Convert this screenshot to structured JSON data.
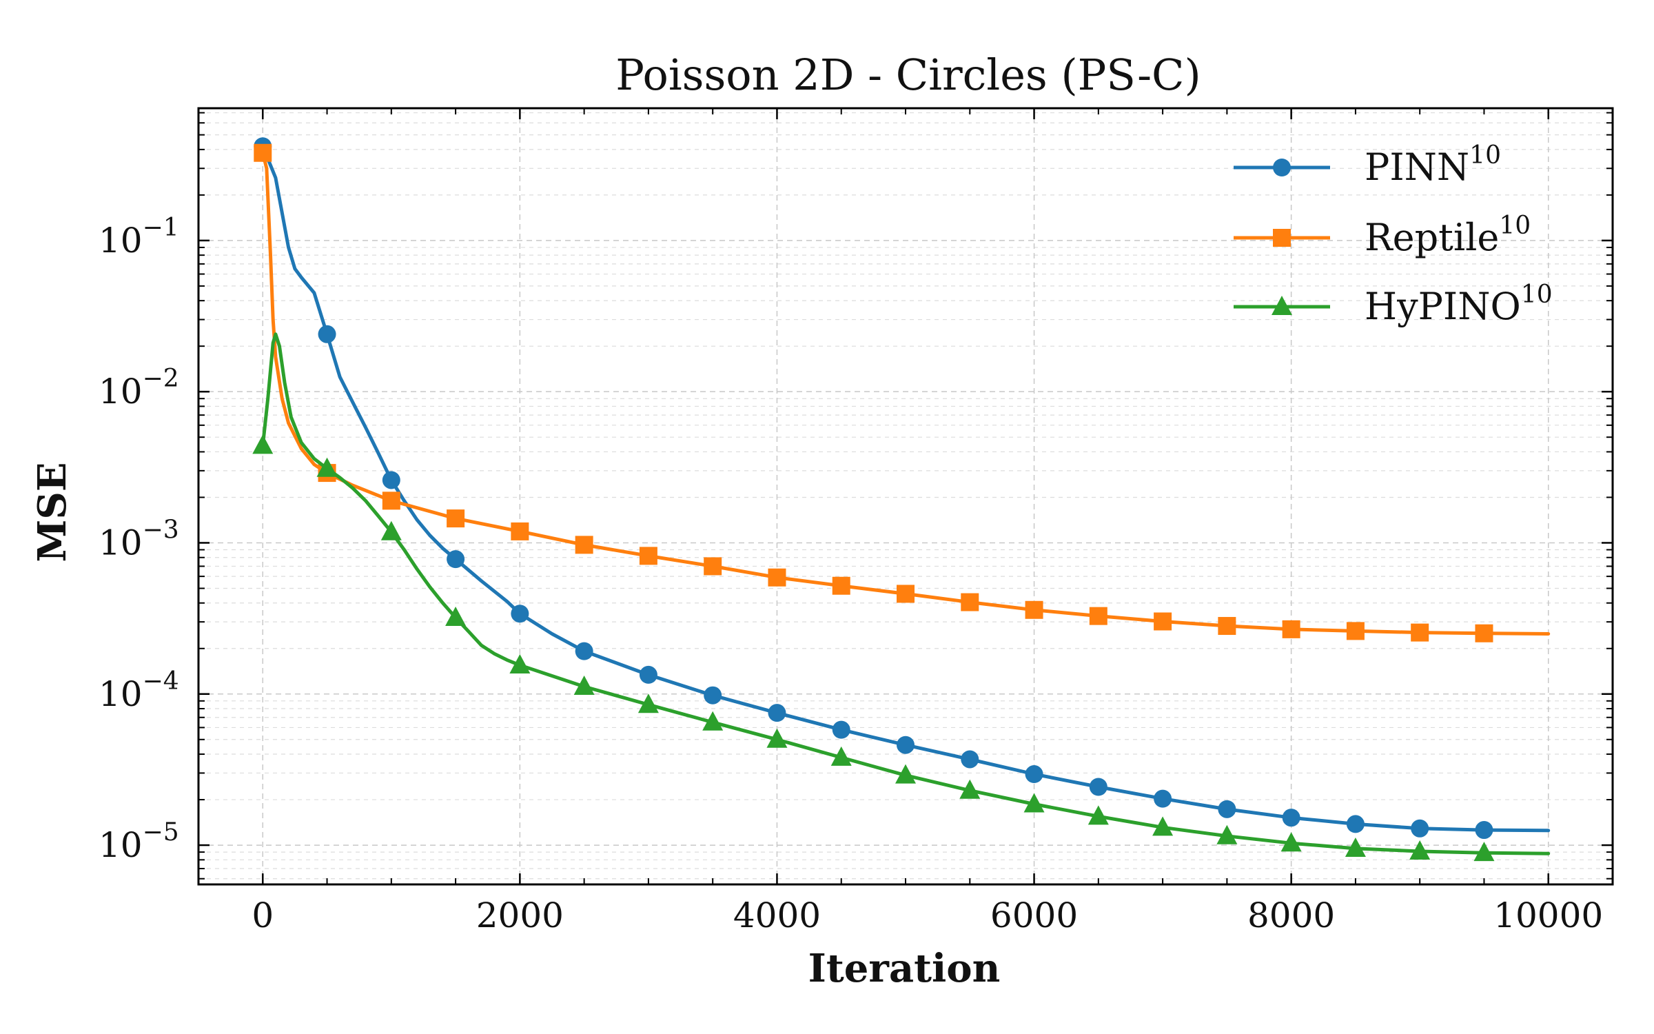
{
  "chart_data": {
    "type": "line",
    "title": "Poisson 2D - Circles (PS-C)",
    "xlabel": "Iteration",
    "ylabel": "MSE",
    "yscale": "log",
    "xlim": [
      -500,
      10500
    ],
    "ylim": [
      5.5e-06,
      0.75
    ],
    "grid": true,
    "legend_position": "top-right",
    "x_ticks": [
      0,
      2000,
      4000,
      6000,
      8000,
      10000
    ],
    "x_tick_labels": [
      "0",
      "2000",
      "4000",
      "6000",
      "8000",
      "10000"
    ],
    "y_ticks": [
      {
        "value": 0.1,
        "base": "10",
        "exp": "−1"
      },
      {
        "value": 0.01,
        "base": "10",
        "exp": "−2"
      },
      {
        "value": 0.001,
        "base": "10",
        "exp": "−3"
      },
      {
        "value": 0.0001,
        "base": "10",
        "exp": "−4"
      },
      {
        "value": 1e-05,
        "base": "10",
        "exp": "−5"
      }
    ],
    "series": [
      {
        "name": "PINN",
        "sup": "10",
        "color": "#1f77b4",
        "marker": "circle",
        "curve": [
          [
            0,
            0.42
          ],
          [
            100,
            0.26
          ],
          [
            200,
            0.09
          ],
          [
            250,
            0.065
          ],
          [
            300,
            0.057
          ],
          [
            400,
            0.045
          ],
          [
            500,
            0.024
          ],
          [
            600,
            0.0125
          ],
          [
            700,
            0.0085
          ],
          [
            800,
            0.0058
          ],
          [
            900,
            0.0039
          ],
          [
            1000,
            0.0026
          ],
          [
            1100,
            0.0019
          ],
          [
            1200,
            0.00142
          ],
          [
            1300,
            0.00112
          ],
          [
            1400,
            0.00092
          ],
          [
            1500,
            0.00078
          ],
          [
            1700,
            0.00056
          ],
          [
            1900,
            0.00041
          ],
          [
            2000,
            0.00034
          ],
          [
            2250,
            0.00025
          ],
          [
            2500,
            0.000192
          ],
          [
            3000,
            0.000134
          ],
          [
            3500,
            9.8e-05
          ],
          [
            4000,
            7.5e-05
          ],
          [
            4500,
            5.8e-05
          ],
          [
            5000,
            4.6e-05
          ],
          [
            5500,
            3.7e-05
          ],
          [
            6000,
            2.95e-05
          ],
          [
            6500,
            2.43e-05
          ],
          [
            7000,
            2.03e-05
          ],
          [
            7500,
            1.73e-05
          ],
          [
            8000,
            1.52e-05
          ],
          [
            8500,
            1.38e-05
          ],
          [
            9000,
            1.29e-05
          ],
          [
            9500,
            1.26e-05
          ],
          [
            10000,
            1.25e-05
          ]
        ],
        "markers": [
          [
            0,
            0.42
          ],
          [
            500,
            0.024
          ],
          [
            1000,
            0.0026
          ],
          [
            1500,
            0.00078
          ],
          [
            2000,
            0.00034
          ],
          [
            2500,
            0.000192
          ],
          [
            3000,
            0.000134
          ],
          [
            3500,
            9.8e-05
          ],
          [
            4000,
            7.5e-05
          ],
          [
            4500,
            5.8e-05
          ],
          [
            5000,
            4.6e-05
          ],
          [
            5500,
            3.7e-05
          ],
          [
            6000,
            2.95e-05
          ],
          [
            6500,
            2.43e-05
          ],
          [
            7000,
            2.03e-05
          ],
          [
            7500,
            1.73e-05
          ],
          [
            8000,
            1.52e-05
          ],
          [
            8500,
            1.38e-05
          ],
          [
            9000,
            1.29e-05
          ],
          [
            9500,
            1.26e-05
          ]
        ]
      },
      {
        "name": "Reptile",
        "sup": "10",
        "color": "#ff7f0e",
        "marker": "square",
        "curve": [
          [
            0,
            0.38
          ],
          [
            30,
            0.3
          ],
          [
            60,
            0.08
          ],
          [
            80,
            0.03
          ],
          [
            100,
            0.017
          ],
          [
            150,
            0.009
          ],
          [
            200,
            0.0062
          ],
          [
            300,
            0.0042
          ],
          [
            400,
            0.0033
          ],
          [
            500,
            0.0029
          ],
          [
            700,
            0.0024
          ],
          [
            1000,
            0.0019
          ],
          [
            1500,
            0.00145
          ],
          [
            2000,
            0.00119
          ],
          [
            2500,
            0.00097
          ],
          [
            3000,
            0.00082
          ],
          [
            3500,
            0.0007
          ],
          [
            4000,
            0.00059
          ],
          [
            4500,
            0.00052
          ],
          [
            5000,
            0.00046
          ],
          [
            5500,
            0.000405
          ],
          [
            6000,
            0.00036
          ],
          [
            6500,
            0.000328
          ],
          [
            7000,
            0.000302
          ],
          [
            7500,
            0.000282
          ],
          [
            8000,
            0.000268
          ],
          [
            8500,
            0.000261
          ],
          [
            9000,
            0.000255
          ],
          [
            9500,
            0.000252
          ],
          [
            10000,
            0.00025
          ]
        ],
        "markers": [
          [
            0,
            0.38
          ],
          [
            500,
            0.0029
          ],
          [
            1000,
            0.0019
          ],
          [
            1500,
            0.00145
          ],
          [
            2000,
            0.00119
          ],
          [
            2500,
            0.00097
          ],
          [
            3000,
            0.00082
          ],
          [
            3500,
            0.0007
          ],
          [
            4000,
            0.00059
          ],
          [
            4500,
            0.00052
          ],
          [
            5000,
            0.00046
          ],
          [
            5500,
            0.000405
          ],
          [
            6000,
            0.00036
          ],
          [
            6500,
            0.000328
          ],
          [
            7000,
            0.000302
          ],
          [
            7500,
            0.000282
          ],
          [
            8000,
            0.000268
          ],
          [
            8500,
            0.000261
          ],
          [
            9000,
            0.000255
          ],
          [
            9500,
            0.000252
          ]
        ]
      },
      {
        "name": "HyPINO",
        "sup": "10",
        "color": "#2ca02c",
        "marker": "triangle",
        "curve": [
          [
            0,
            0.0044
          ],
          [
            40,
            0.009
          ],
          [
            80,
            0.021
          ],
          [
            100,
            0.024
          ],
          [
            130,
            0.02
          ],
          [
            170,
            0.0115
          ],
          [
            220,
            0.0068
          ],
          [
            300,
            0.0046
          ],
          [
            400,
            0.0036
          ],
          [
            500,
            0.0031
          ],
          [
            600,
            0.0027
          ],
          [
            700,
            0.0023
          ],
          [
            800,
            0.0019
          ],
          [
            900,
            0.0015
          ],
          [
            1000,
            0.00118
          ],
          [
            1100,
            0.0009
          ],
          [
            1200,
            0.00067
          ],
          [
            1300,
            0.00051
          ],
          [
            1400,
            0.0004
          ],
          [
            1500,
            0.00032
          ],
          [
            1600,
            0.00026
          ],
          [
            1700,
            0.00021
          ],
          [
            1800,
            0.000185
          ],
          [
            1900,
            0.000168
          ],
          [
            2000,
            0.000155
          ],
          [
            2500,
            0.000112
          ],
          [
            3000,
            8.5e-05
          ],
          [
            3500,
            6.5e-05
          ],
          [
            4000,
            5e-05
          ],
          [
            4500,
            3.8e-05
          ],
          [
            5000,
            2.9e-05
          ],
          [
            5500,
            2.3e-05
          ],
          [
            6000,
            1.87e-05
          ],
          [
            6500,
            1.55e-05
          ],
          [
            7000,
            1.31e-05
          ],
          [
            7500,
            1.15e-05
          ],
          [
            8000,
            1.03e-05
          ],
          [
            8500,
            9.5e-06
          ],
          [
            9000,
            9.1e-06
          ],
          [
            9500,
            8.9e-06
          ],
          [
            10000,
            8.8e-06
          ]
        ],
        "markers": [
          [
            0,
            0.0044
          ],
          [
            500,
            0.0031
          ],
          [
            1000,
            0.00118
          ],
          [
            1500,
            0.00032
          ],
          [
            2000,
            0.000155
          ],
          [
            2500,
            0.000112
          ],
          [
            3000,
            8.5e-05
          ],
          [
            3500,
            6.5e-05
          ],
          [
            4000,
            5e-05
          ],
          [
            4500,
            3.8e-05
          ],
          [
            5000,
            2.9e-05
          ],
          [
            5500,
            2.3e-05
          ],
          [
            6000,
            1.87e-05
          ],
          [
            6500,
            1.55e-05
          ],
          [
            7000,
            1.31e-05
          ],
          [
            7500,
            1.15e-05
          ],
          [
            8000,
            1.03e-05
          ],
          [
            8500,
            9.5e-06
          ],
          [
            9000,
            9.1e-06
          ],
          [
            9500,
            8.9e-06
          ]
        ]
      }
    ]
  }
}
